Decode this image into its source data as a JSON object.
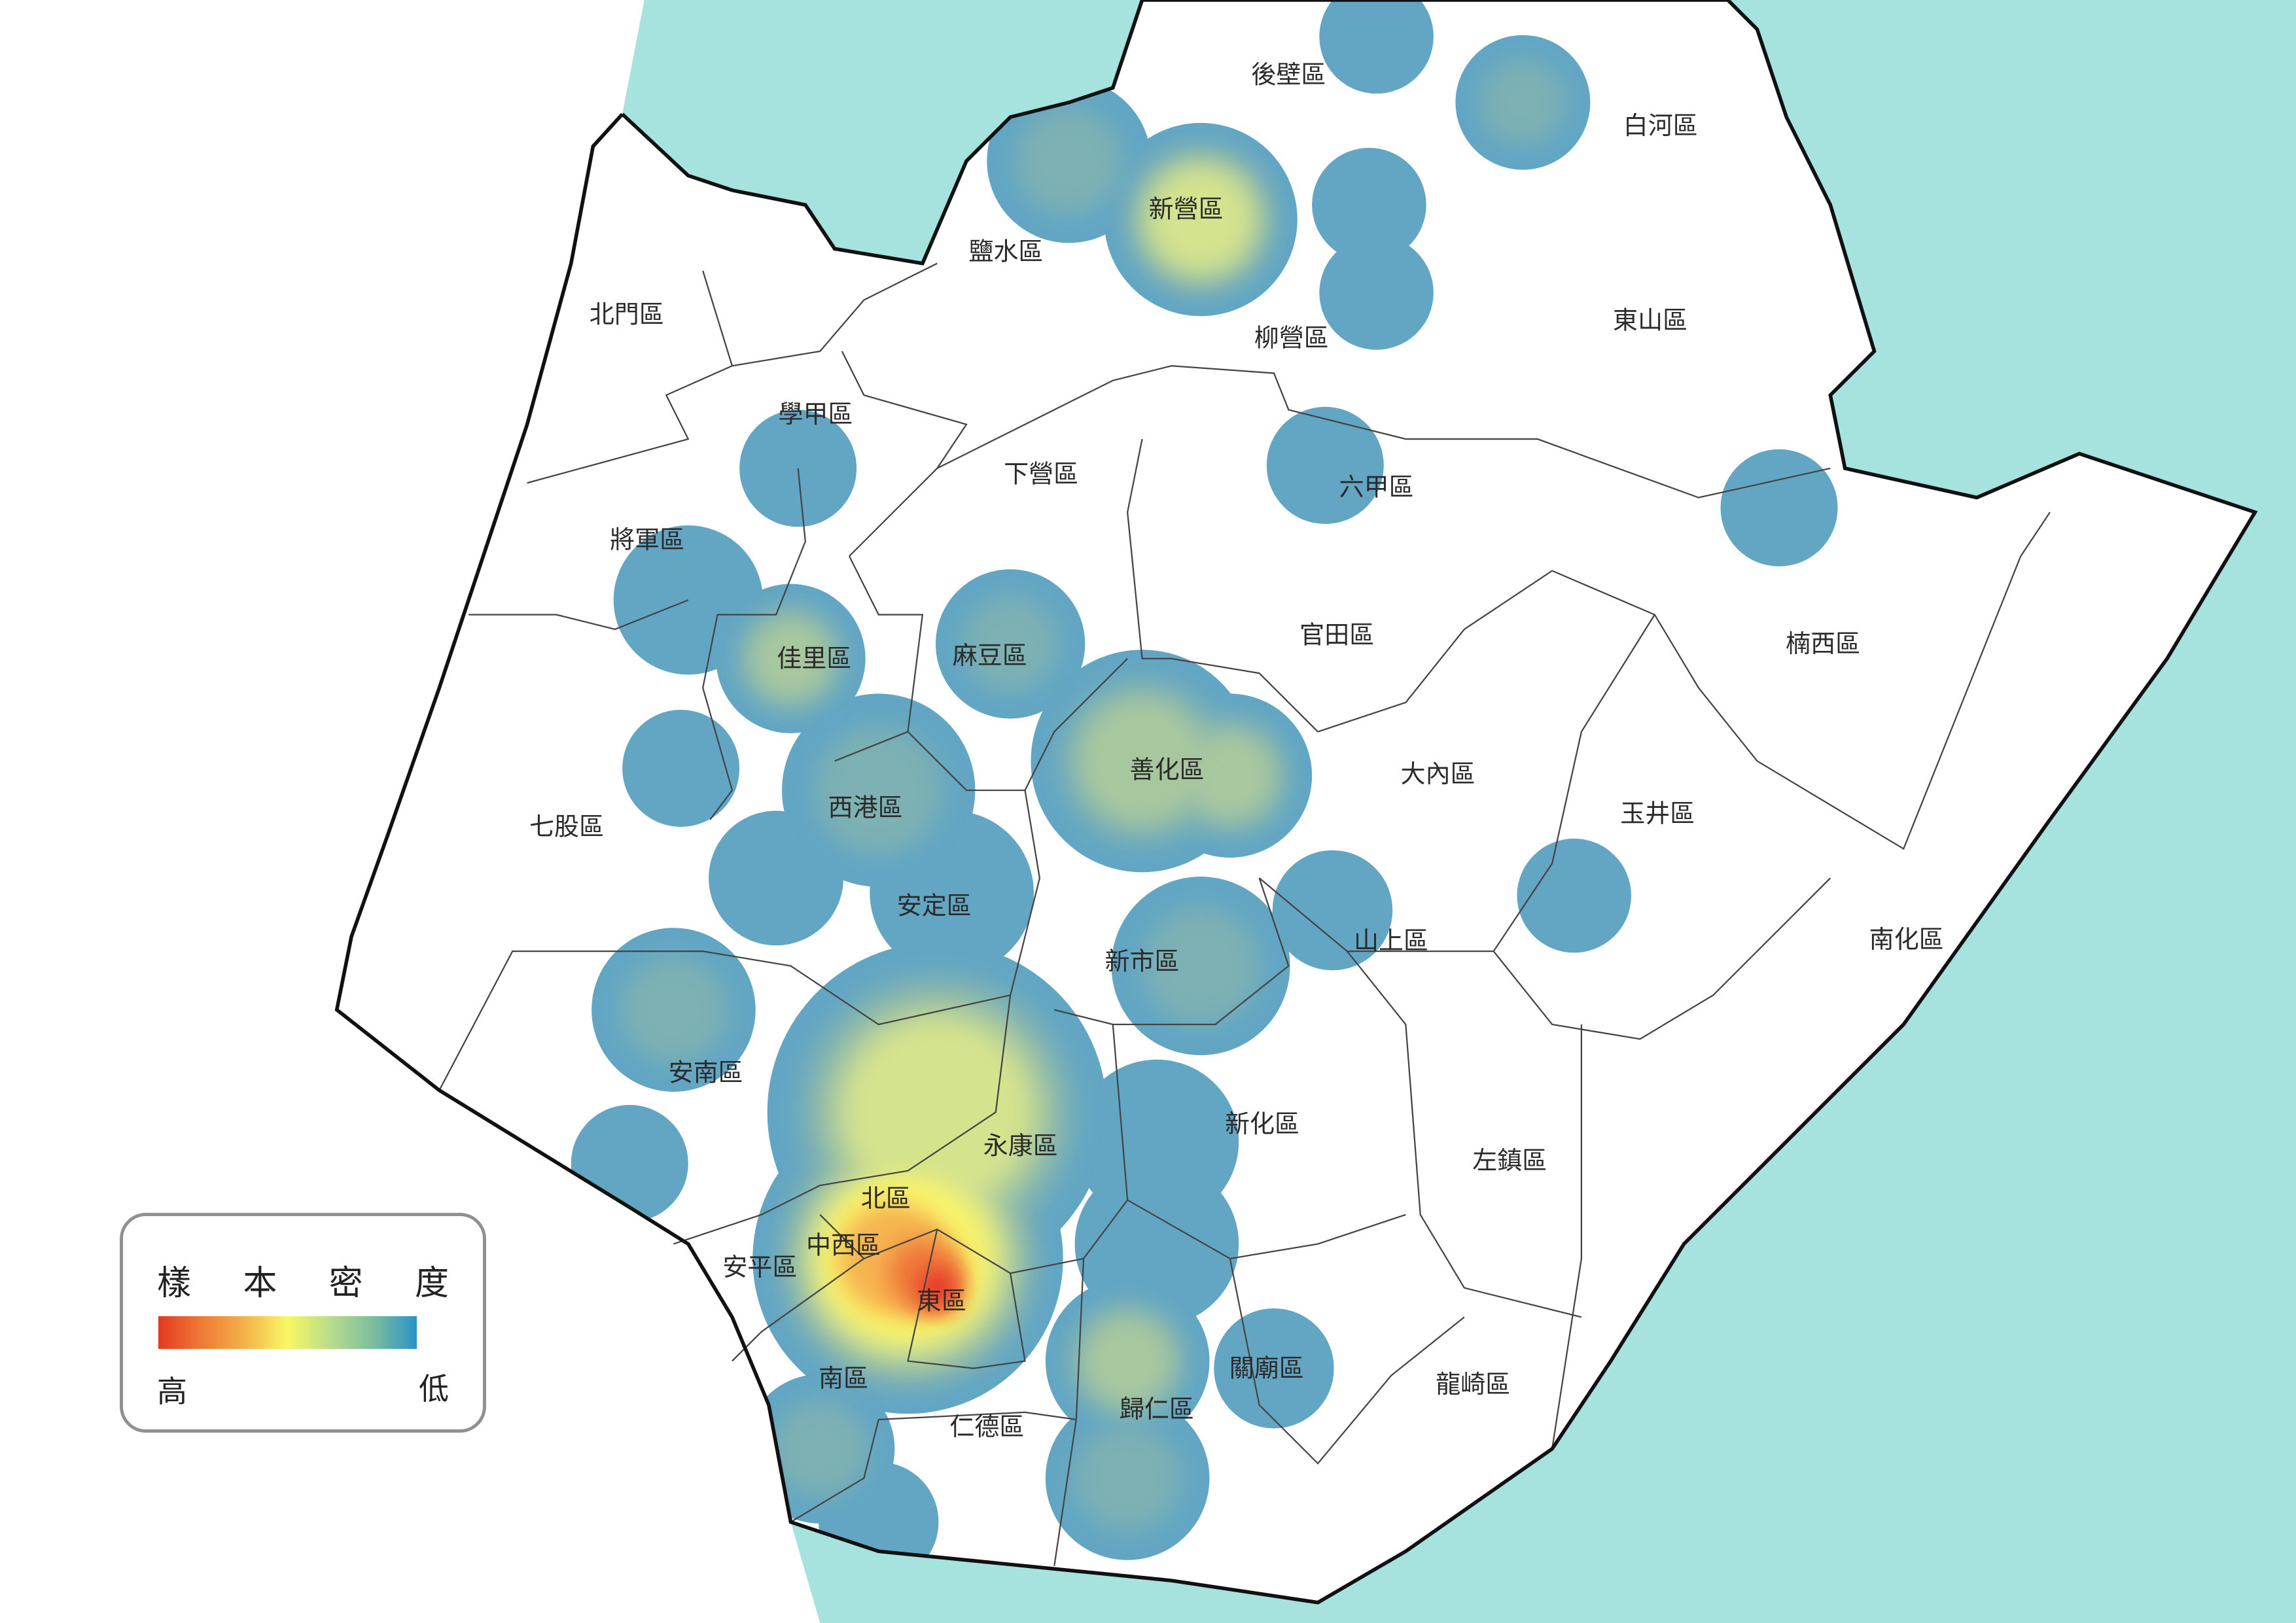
{
  "map": {
    "colors": {
      "sea": "#a6e3de",
      "land": "#ffffff",
      "low": "#62a6c4",
      "high": "#e8302a",
      "border": "#444444",
      "coast": "#111111"
    },
    "districts": [
      "後壁區",
      "白河區",
      "新營區",
      "鹽水區",
      "柳營區",
      "東山區",
      "北門區",
      "學甲區",
      "下營區",
      "六甲區",
      "將軍區",
      "官田區",
      "楠西區",
      "佳里區",
      "麻豆區",
      "善化區",
      "大內區",
      "玉井區",
      "西港區",
      "七股區",
      "安定區",
      "山上區",
      "新市區",
      "南化區",
      "安南區",
      "新化區",
      "永康區",
      "左鎮區",
      "北區",
      "中西區",
      "安平區",
      "東區",
      "南區",
      "仁德區",
      "歸仁區",
      "關廟區",
      "龍崎區"
    ]
  },
  "legend": {
    "title_chars": [
      "樣",
      "本",
      "密",
      "度"
    ],
    "high_label": "高",
    "low_label": "低",
    "gradient": [
      "#e43a20",
      "#ee7a35",
      "#f4b24a",
      "#f8f864",
      "#b8dc8c",
      "#7bbd9e",
      "#2b92c8"
    ]
  }
}
